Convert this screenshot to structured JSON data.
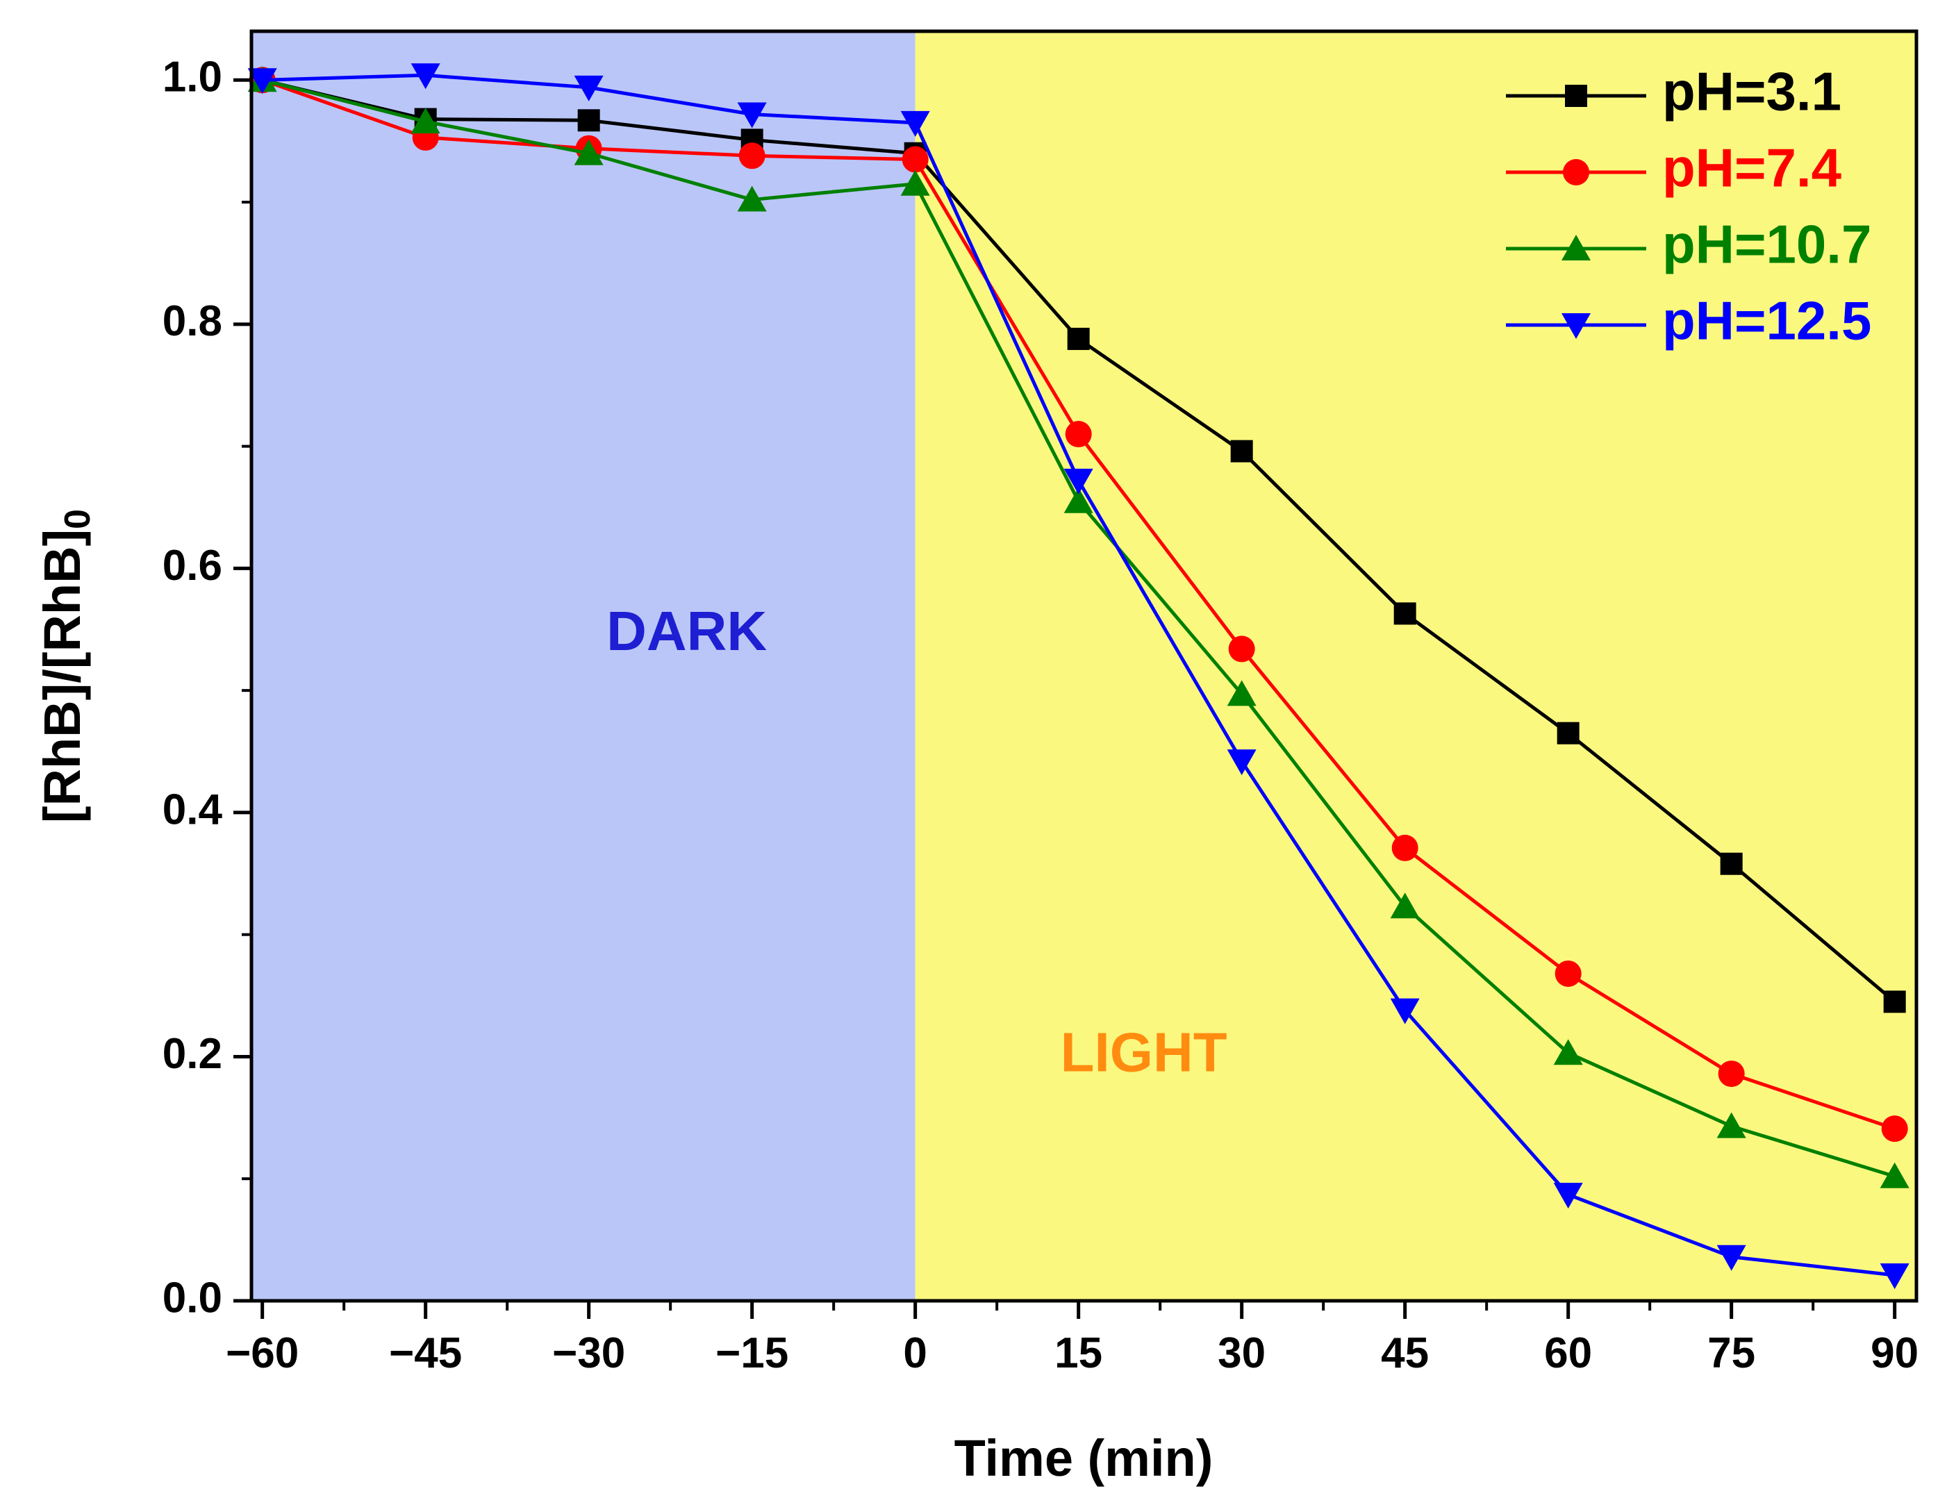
{
  "chart_data": {
    "type": "line",
    "title": "",
    "xlabel": "Time (min)",
    "ylabel": {
      "main": "[RhB]/[RhB]",
      "subscript": "0"
    },
    "x": [
      -60,
      -45,
      -30,
      -15,
      0,
      15,
      30,
      45,
      60,
      75,
      90
    ],
    "x_tick_labels": [
      "−60",
      "−45",
      "−30",
      "−15",
      "0",
      "15",
      "30",
      "45",
      "60",
      "75",
      "90"
    ],
    "y_tick_labels": [
      "0.0",
      "0.2",
      "0.4",
      "0.6",
      "0.8",
      "1.0"
    ],
    "xlim": [
      -61,
      92
    ],
    "ylim": [
      0.0,
      1.04
    ],
    "x_ticks": [
      -60,
      -45,
      -30,
      -15,
      0,
      15,
      30,
      45,
      60,
      75,
      90
    ],
    "y_ticks": [
      0.0,
      0.2,
      0.4,
      0.6,
      0.8,
      1.0
    ],
    "grid": false,
    "legend_position": "top-right",
    "regions": [
      {
        "label": "DARK",
        "x_start": -61,
        "x_end": 0,
        "fill_color": "#BAC6F8",
        "label_color": "#1E1ED2",
        "label_x": -21,
        "label_y": 0.545
      },
      {
        "label": "LIGHT",
        "x_start": 0,
        "x_end": 92,
        "fill_color": "#FBF87F",
        "label_color": "#FF8C10",
        "label_x": 21,
        "label_y": 0.2
      }
    ],
    "series": [
      {
        "name": "pH=3.1",
        "color": "#000000",
        "marker": "square",
        "values": [
          1.0,
          0.968,
          0.967,
          0.951,
          0.94,
          0.788,
          0.696,
          0.563,
          0.465,
          0.358,
          0.245
        ]
      },
      {
        "name": "pH=7.4",
        "color": "#FF0000",
        "marker": "circle",
        "values": [
          1.0,
          0.953,
          0.944,
          0.938,
          0.935,
          0.71,
          0.534,
          0.371,
          0.268,
          0.186,
          0.141
        ]
      },
      {
        "name": "pH=10.7",
        "color": "#008000",
        "marker": "triangle-up",
        "values": [
          1.0,
          0.966,
          0.94,
          0.902,
          0.915,
          0.655,
          0.497,
          0.323,
          0.203,
          0.143,
          0.102
        ]
      },
      {
        "name": "pH=12.5",
        "color": "#0000FF",
        "marker": "triangle-down",
        "values": [
          1.0,
          1.004,
          0.994,
          0.972,
          0.965,
          0.672,
          0.442,
          0.238,
          0.087,
          0.036,
          0.021
        ]
      }
    ]
  }
}
